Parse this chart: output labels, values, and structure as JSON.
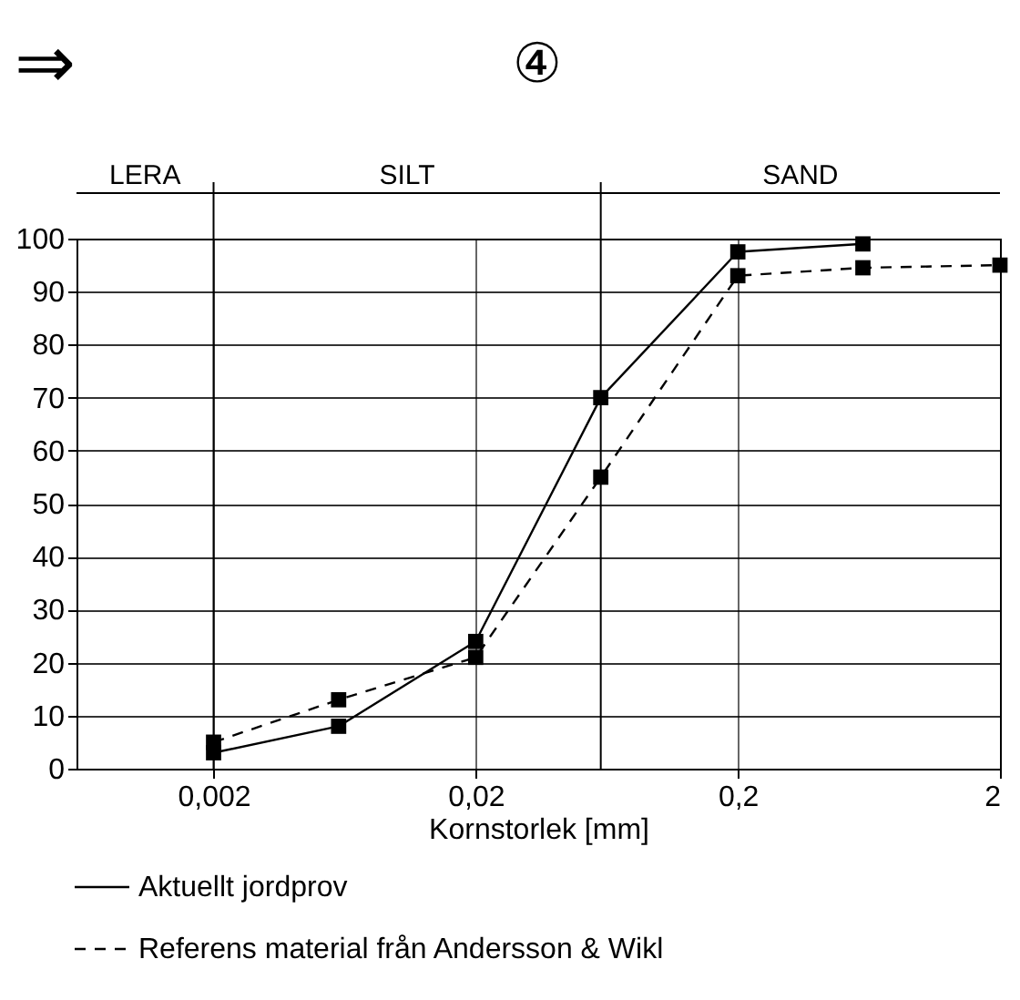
{
  "chart_data": {
    "type": "line",
    "title": "④",
    "annotations": [
      "⇒",
      "LERA",
      "SILT",
      "SAND"
    ],
    "xlabel": "Kornstorlek [mm]",
    "x": [
      0.002,
      0.006,
      0.02,
      0.06,
      0.2,
      0.6,
      2
    ],
    "series": [
      {
        "name": "Aktuellt jordprov",
        "color": "#000000",
        "line_style": "solid",
        "values": [
          3,
          8,
          24,
          70,
          97.5,
          99,
          null
        ]
      },
      {
        "name": "Referens material från Andersson & Wikl",
        "color": "#000000",
        "line_style": "dashed",
        "values": [
          5,
          13,
          21,
          55,
          93,
          94.5,
          95
        ]
      }
    ],
    "ref_lines": [
      {
        "axis": "x",
        "value": 0.002,
        "label": null
      },
      {
        "axis": "x",
        "value": 0.06,
        "label": null
      }
    ],
    "log": "x",
    "xlim": [
      0.0006,
      2
    ],
    "xticks": [
      {
        "value": 0.002,
        "label": "0,002"
      },
      {
        "value": 0.02,
        "label": "0,02"
      },
      {
        "value": 0.2,
        "label": "0,2"
      },
      2
    ],
    "ylim": [
      0,
      100
    ],
    "yticks": [
      0,
      10,
      20,
      30,
      40,
      50,
      60,
      70,
      80,
      90,
      100
    ],
    "grid": true,
    "marker": "square",
    "legend": "bottom"
  }
}
